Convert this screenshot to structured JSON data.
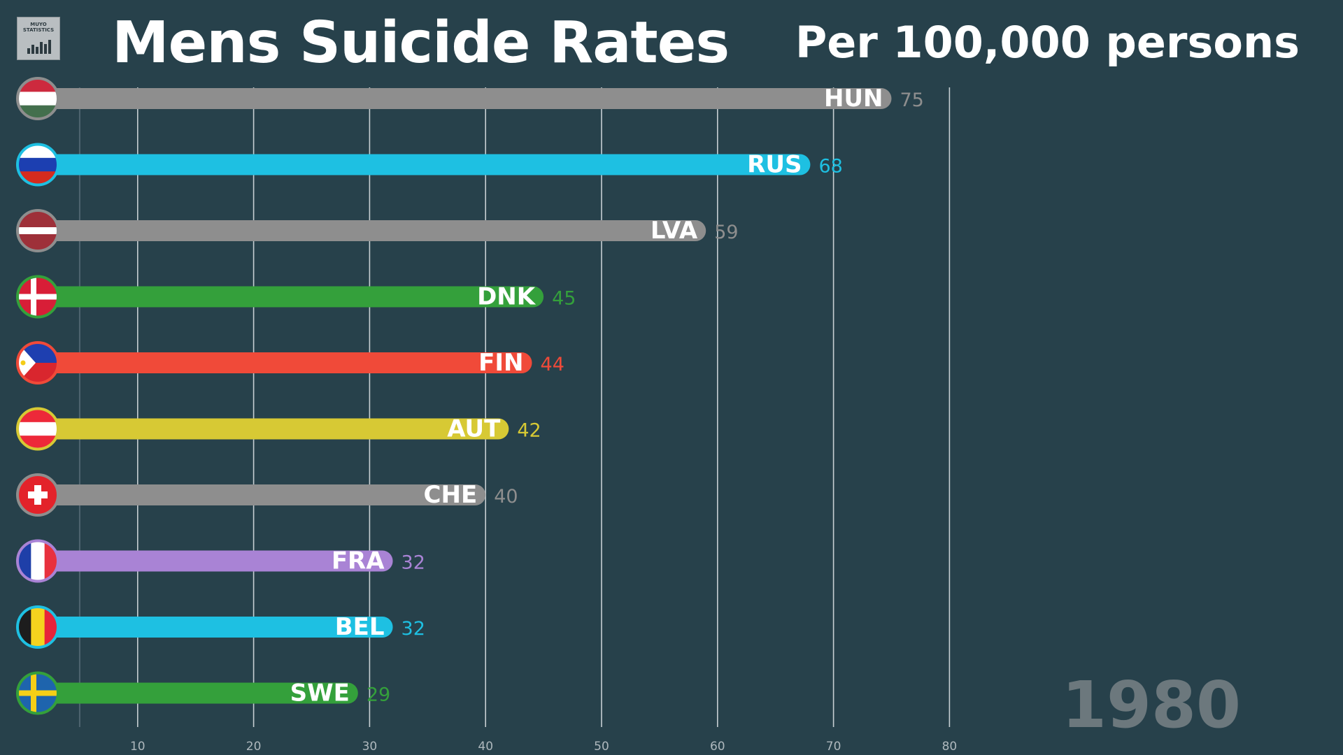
{
  "logo": {
    "text_line1": "MUYO",
    "text_line2": "STATISTICS"
  },
  "title": "Mens Suicide Rates",
  "subtitle": "Per 100,000 persons",
  "year": "1980",
  "chart_data": {
    "type": "bar",
    "orientation": "horizontal",
    "title": "Mens Suicide Rates",
    "subtitle": "Per 100,000 persons",
    "xlim": [
      0,
      80
    ],
    "x_ticks": [
      10,
      20,
      30,
      40,
      50,
      60,
      70,
      80
    ],
    "grid": true,
    "categories": [
      "HUN",
      "RUS",
      "LVA",
      "DNK",
      "FIN",
      "AUT",
      "CHE",
      "FRA",
      "BEL",
      "SWE"
    ],
    "values": [
      75,
      68,
      59,
      45,
      44,
      42,
      40,
      32,
      32,
      29
    ],
    "colors": [
      "#8e8e8e",
      "#1ec0e2",
      "#8e8e8e",
      "#34a03b",
      "#f04a39",
      "#d7c934",
      "#8e8e8e",
      "#a983d5",
      "#1ec0e2",
      "#34a03b"
    ],
    "flags": [
      "hungary-flag-icon",
      "russia-flag-icon",
      "latvia-flag-icon",
      "denmark-flag-icon",
      "philippines-flag-icon",
      "austria-flag-icon",
      "switzerland-flag-icon",
      "france-flag-icon",
      "belgium-flag-icon",
      "sweden-flag-icon"
    ]
  }
}
